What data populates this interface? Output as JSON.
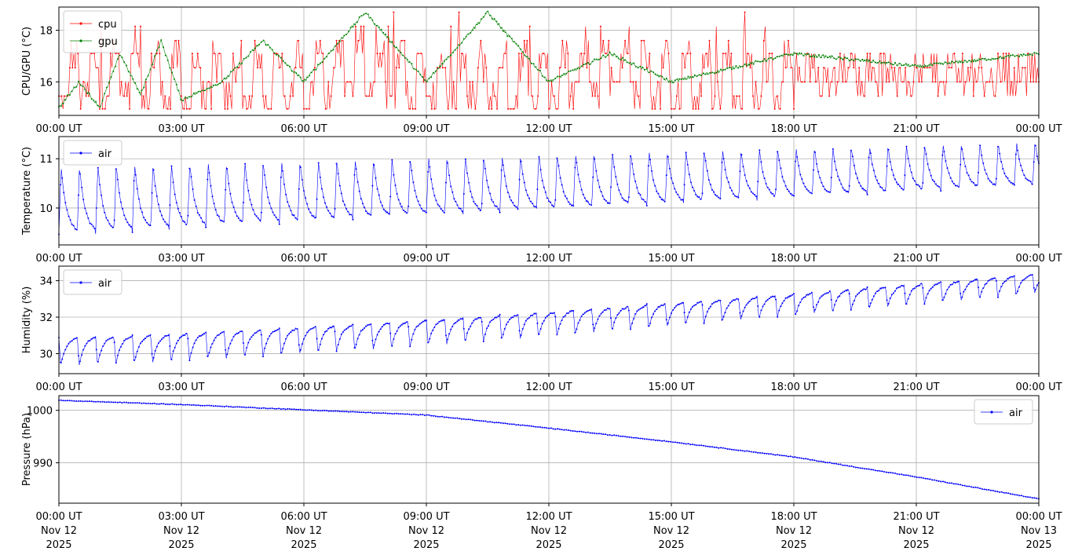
{
  "colors": {
    "cpu": "#ff0000",
    "gpu": "#008000",
    "air": "#0000ff",
    "grid": "#b0b0b0",
    "axes": "#000000"
  },
  "chart_data": [
    {
      "type": "line",
      "ylabel": "CPU/GPU (°C)",
      "xlabel": "",
      "x_range": [
        "2025-11-12T00:00Z",
        "2025-11-13T00:00Z"
      ],
      "ylim": [
        14.7,
        18.9
      ],
      "yticks": [
        16,
        18
      ],
      "ytick_labels": [
        "16",
        "18"
      ],
      "xtick_labels": [
        "00:00 UT",
        "03:00 UT",
        "06:00 UT",
        "09:00 UT",
        "12:00 UT",
        "15:00 UT",
        "18:00 UT",
        "21:00 UT",
        "00:00 UT"
      ],
      "grid": true,
      "legend_position": "upper-left",
      "legend_entries": [
        "cpu",
        "gpu"
      ],
      "series": [
        {
          "name": "cpu",
          "x_unit": "hours since 2025-11-12 00:00 UT",
          "sample_x": [
            0.0,
            0.5,
            1.0,
            1.5,
            2.0,
            2.5,
            3.0,
            4.0,
            5.0,
            6.0,
            7.5,
            9.0,
            10.5,
            12.0,
            13.5,
            15.0,
            18.0,
            21.0,
            24.0
          ],
          "sample_y": [
            15.0,
            17.1,
            15.0,
            16.6,
            15.3,
            17.1,
            15.3,
            16.0,
            15.5,
            16.6,
            18.7,
            15.5,
            16.0,
            16.6,
            18.7,
            16.0,
            16.0,
            16.6,
            17.1
          ]
        },
        {
          "name": "gpu",
          "x_unit": "hours since 2025-11-12 00:00 UT",
          "sample_x": [
            0.0,
            0.5,
            1.0,
            1.5,
            2.0,
            2.5,
            3.0,
            4.0,
            5.0,
            6.0,
            7.5,
            9.0,
            10.5,
            12.0,
            13.5,
            15.0,
            18.0,
            21.0,
            24.0
          ],
          "sample_y": [
            15.0,
            16.0,
            15.0,
            17.1,
            15.5,
            17.6,
            15.3,
            16.0,
            17.6,
            16.0,
            18.7,
            16.0,
            18.7,
            16.0,
            17.1,
            16.0,
            17.1,
            16.6,
            17.1
          ]
        }
      ]
    },
    {
      "type": "line",
      "ylabel": "Temperature (°C)",
      "xlabel": "",
      "x_range": [
        "2025-11-12T00:00Z",
        "2025-11-13T00:00Z"
      ],
      "ylim": [
        9.25,
        11.45
      ],
      "yticks": [
        10,
        11
      ],
      "ytick_labels": [
        "10",
        "11"
      ],
      "xtick_labels": [
        "00:00 UT",
        "03:00 UT",
        "06:00 UT",
        "09:00 UT",
        "12:00 UT",
        "15:00 UT",
        "18:00 UT",
        "21:00 UT",
        "00:00 UT"
      ],
      "grid": true,
      "legend_position": "upper-left",
      "legend_entries": [
        "air"
      ],
      "series": [
        {
          "name": "air",
          "x_unit": "hours since 2025-11-12 00:00 UT",
          "sample_x": [
            0,
            3,
            6,
            9,
            12,
            15,
            18,
            19.5,
            21,
            22.5,
            24
          ],
          "sample_y": [
            9.6,
            10.4,
            10.1,
            10.6,
            10.2,
            10.6,
            10.0,
            10.2,
            10.4,
            10.5,
            10.8
          ],
          "cycle_hours": 0.45,
          "peak_start": 10.85,
          "peak_end": 11.35,
          "trough_start": 9.45,
          "trough_end": 10.45
        }
      ]
    },
    {
      "type": "line",
      "ylabel": "Humidity (%)",
      "xlabel": "",
      "x_range": [
        "2025-11-12T00:00Z",
        "2025-11-13T00:00Z"
      ],
      "ylim": [
        28.9,
        34.8
      ],
      "yticks": [
        30,
        32,
        34
      ],
      "ytick_labels": [
        "30",
        "32",
        "34"
      ],
      "xtick_labels": [
        "00:00 UT",
        "03:00 UT",
        "06:00 UT",
        "09:00 UT",
        "12:00 UT",
        "15:00 UT",
        "18:00 UT",
        "21:00 UT",
        "00:00 UT"
      ],
      "grid": true,
      "legend_position": "upper-left",
      "legend_entries": [
        "air"
      ],
      "series": [
        {
          "name": "air",
          "x_unit": "hours since 2025-11-12 00:00 UT",
          "sample_x": [
            0,
            3,
            6,
            9,
            12,
            15,
            18,
            21,
            24
          ],
          "sample_y": [
            30.8,
            31.0,
            31.8,
            31.8,
            31.9,
            32.3,
            33.2,
            33.8,
            34.1
          ],
          "cycle_hours": 0.45,
          "trough_start": 29.3,
          "trough_end": 33.3,
          "peak_start": 30.9,
          "peak_end": 34.4
        }
      ]
    },
    {
      "type": "line",
      "ylabel": "Pressure (hPa)",
      "xlabel": "",
      "x_range": [
        "2025-11-12T00:00Z",
        "2025-11-13T00:00Z"
      ],
      "ylim": [
        982.3,
        1002.8
      ],
      "yticks": [
        990,
        1000
      ],
      "ytick_labels": [
        "990",
        "1000"
      ],
      "xtick_labels": [
        [
          "00:00 UT",
          "Nov 12",
          "2025"
        ],
        [
          "03:00 UT",
          "Nov 12",
          "2025"
        ],
        [
          "06:00 UT",
          "Nov 12",
          "2025"
        ],
        [
          "09:00 UT",
          "Nov 12",
          "2025"
        ],
        [
          "12:00 UT",
          "Nov 12",
          "2025"
        ],
        [
          "15:00 UT",
          "Nov 12",
          "2025"
        ],
        [
          "18:00 UT",
          "Nov 12",
          "2025"
        ],
        [
          "21:00 UT",
          "Nov 12",
          "2025"
        ],
        [
          "00:00 UT",
          "Nov 13",
          "2025"
        ]
      ],
      "grid": true,
      "legend_position": "upper-right",
      "legend_entries": [
        "air"
      ],
      "series": [
        {
          "name": "air",
          "x_unit": "hours since 2025-11-12 00:00 UT",
          "sample_x": [
            0,
            3,
            6,
            9,
            12,
            15,
            18,
            21,
            24
          ],
          "sample_y": [
            1001.9,
            1001.1,
            1000.1,
            999.1,
            996.6,
            994.0,
            991.1,
            987.3,
            983.1
          ]
        }
      ]
    }
  ]
}
